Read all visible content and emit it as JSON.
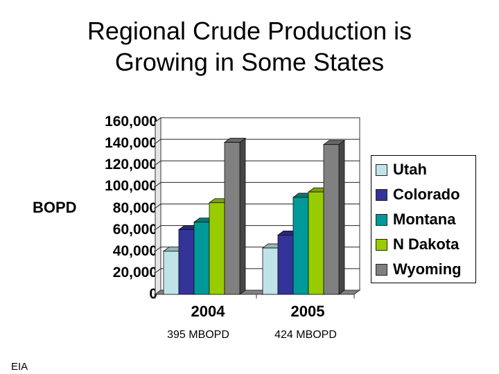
{
  "title_line1": "Regional Crude Production is",
  "title_line2": "Growing in Some States",
  "source": "EIA",
  "chart_data": {
    "type": "bar",
    "title": "Regional Crude Production is Growing in Some States",
    "xlabel": "",
    "ylabel": "BOPD",
    "ylim": [
      0,
      160000
    ],
    "yticks": [
      "0",
      "20,000",
      "40,000",
      "60,000",
      "80,000",
      "100,000",
      "120,000",
      "140,000",
      "160,000"
    ],
    "categories": [
      "2004",
      "2005"
    ],
    "category_totals": [
      "395 MBOPD",
      "424 MBOPD"
    ],
    "series": [
      {
        "name": "Utah",
        "color": "#BFE3E8",
        "values": [
          40000,
          43000
        ]
      },
      {
        "name": "Colorado",
        "color": "#333399",
        "values": [
          60000,
          55000
        ]
      },
      {
        "name": "Montana",
        "color": "#009999",
        "values": [
          67000,
          90000
        ]
      },
      {
        "name": "N Dakota",
        "color": "#99CC00",
        "values": [
          85000,
          95000
        ]
      },
      {
        "name": "Wyoming",
        "color": "#808080",
        "values": [
          141000,
          139000
        ]
      }
    ],
    "grid": true,
    "legend_position": "right",
    "style": "3d-clustered-column"
  }
}
